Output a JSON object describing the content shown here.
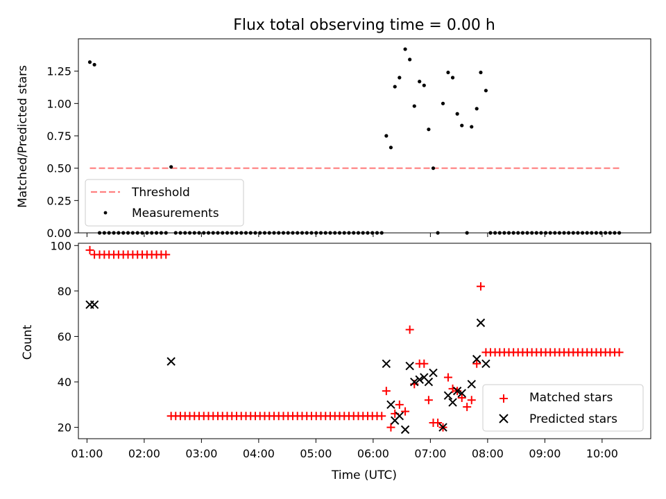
{
  "chart_data": [
    {
      "type": "scatter",
      "title": "Flux total observing time = 0.00 h",
      "xlabel": "",
      "ylabel": "Matched/Predicted stars",
      "xlim": [
        0.85,
        10.85
      ],
      "ylim": [
        0.0,
        1.5
      ],
      "x_ticks": [
        1,
        2,
        3,
        4,
        5,
        6,
        7,
        8,
        9,
        10
      ],
      "y_ticks": [
        0.0,
        0.25,
        0.5,
        0.75,
        1.0,
        1.25
      ],
      "y_tick_labels": [
        "0.00",
        "0.25",
        "0.50",
        "0.75",
        "1.00",
        "1.25"
      ],
      "legend_position": "lower-left",
      "threshold": {
        "name": "Threshold",
        "y": 0.5,
        "x_range": [
          1.05,
          10.3
        ],
        "color": "#ff7f7f"
      },
      "series": [
        {
          "name": "Measurements",
          "color": "#000000",
          "marker": "dot",
          "points": [
            [
              1.05,
              1.32
            ],
            [
              1.13,
              1.3
            ],
            [
              2.47,
              0.51
            ],
            [
              6.23,
              0.75
            ],
            [
              6.31,
              0.66
            ],
            [
              6.38,
              1.13
            ],
            [
              6.46,
              1.2
            ],
            [
              6.56,
              1.42
            ],
            [
              6.64,
              1.34
            ],
            [
              6.72,
              0.98
            ],
            [
              6.81,
              1.17
            ],
            [
              6.89,
              1.14
            ],
            [
              6.97,
              0.8
            ],
            [
              7.05,
              0.5
            ],
            [
              7.22,
              1.0
            ],
            [
              7.31,
              1.24
            ],
            [
              7.39,
              1.2
            ],
            [
              7.47,
              0.92
            ],
            [
              7.55,
              0.83
            ],
            [
              7.72,
              0.82
            ],
            [
              7.81,
              0.96
            ],
            [
              7.88,
              1.24
            ],
            [
              7.97,
              1.1
            ],
            [
              7.13,
              0.0
            ],
            [
              7.64,
              0.0
            ]
          ],
          "zero_runs": [
            {
              "start": 1.22,
              "end": 2.38,
              "count": 15
            },
            {
              "start": 2.55,
              "end": 6.15,
              "count": 45
            },
            {
              "start": 8.05,
              "end": 10.3,
              "count": 29
            }
          ]
        }
      ]
    },
    {
      "type": "scatter",
      "title": "",
      "xlabel": "Time (UTC)",
      "ylabel": "Count",
      "xlim": [
        0.85,
        10.85
      ],
      "ylim": [
        15,
        101
      ],
      "x_ticks": [
        1,
        2,
        3,
        4,
        5,
        6,
        7,
        8,
        9,
        10
      ],
      "x_tick_labels": [
        "01:00",
        "02:00",
        "03:00",
        "04:00",
        "05:00",
        "06:00",
        "07:00",
        "08:00",
        "09:00",
        "10:00"
      ],
      "y_ticks": [
        20,
        40,
        60,
        80,
        100
      ],
      "y_tick_labels": [
        "20",
        "40",
        "60",
        "80",
        "100"
      ],
      "legend_position": "lower-right",
      "series": [
        {
          "name": "Matched stars",
          "color": "#ff0000",
          "marker": "plus",
          "points": [
            [
              1.05,
              98
            ],
            [
              1.13,
              96
            ],
            [
              2.47,
              25
            ],
            [
              6.23,
              36
            ],
            [
              6.31,
              20
            ],
            [
              6.38,
              26
            ],
            [
              6.46,
              30
            ],
            [
              6.56,
              27
            ],
            [
              6.64,
              63
            ],
            [
              6.72,
              39
            ],
            [
              6.81,
              48
            ],
            [
              6.89,
              48
            ],
            [
              6.97,
              32
            ],
            [
              7.05,
              22
            ],
            [
              7.13,
              22
            ],
            [
              7.22,
              20
            ],
            [
              7.31,
              42
            ],
            [
              7.39,
              37
            ],
            [
              7.47,
              36
            ],
            [
              7.55,
              33
            ],
            [
              7.64,
              29
            ],
            [
              7.72,
              32
            ],
            [
              7.81,
              48
            ],
            [
              7.88,
              82
            ],
            [
              7.97,
              53
            ]
          ],
          "runs": [
            {
              "start": 1.22,
              "end": 2.38,
              "count": 15,
              "value": 96
            },
            {
              "start": 2.55,
              "end": 6.15,
              "count": 45,
              "value": 25
            },
            {
              "start": 8.05,
              "end": 10.3,
              "count": 29,
              "value": 53
            }
          ]
        },
        {
          "name": "Predicted stars",
          "color": "#000000",
          "marker": "x",
          "points": [
            [
              1.05,
              74
            ],
            [
              1.13,
              74
            ],
            [
              2.47,
              49
            ],
            [
              6.23,
              48
            ],
            [
              6.31,
              30
            ],
            [
              6.38,
              23
            ],
            [
              6.46,
              25
            ],
            [
              6.56,
              19
            ],
            [
              6.64,
              47
            ],
            [
              6.72,
              40
            ],
            [
              6.81,
              41
            ],
            [
              6.89,
              42
            ],
            [
              6.97,
              40
            ],
            [
              7.05,
              44
            ],
            [
              7.22,
              20
            ],
            [
              7.31,
              34
            ],
            [
              7.39,
              31
            ],
            [
              7.47,
              36
            ],
            [
              7.55,
              35
            ],
            [
              7.72,
              39
            ],
            [
              7.81,
              50
            ],
            [
              7.88,
              66
            ],
            [
              7.97,
              48
            ]
          ]
        }
      ]
    }
  ]
}
